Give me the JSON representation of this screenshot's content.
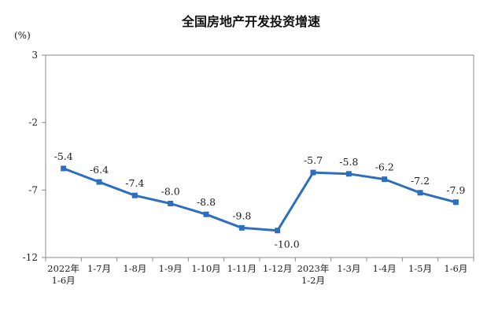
{
  "chart_data": {
    "type": "line",
    "title": "全国房地产开发投资增速",
    "unit_label": "(%)",
    "xlabel": "",
    "ylabel": "",
    "ylim": [
      -12,
      3
    ],
    "yticks": [
      3,
      -2,
      -7,
      -12
    ],
    "grid": false,
    "categories": [
      [
        "2022年",
        "1-6月"
      ],
      [
        "1-7月"
      ],
      [
        "1-8月"
      ],
      [
        "1-9月"
      ],
      [
        "1-10月"
      ],
      [
        "1-11月"
      ],
      [
        "1-12月"
      ],
      [
        "2023年",
        "1-2月"
      ],
      [
        "1-3月"
      ],
      [
        "1-4月"
      ],
      [
        "1-5月"
      ],
      [
        "1-6月"
      ]
    ],
    "series": [
      {
        "values": [
          -5.4,
          -6.4,
          -7.4,
          -8.0,
          -8.8,
          -9.8,
          -10.0,
          -5.7,
          -5.8,
          -6.2,
          -7.2,
          -7.9
        ],
        "data_labels": [
          "-5.4",
          "-6.4",
          "-7.4",
          "-8.0",
          "-8.8",
          "-9.8",
          "-10.0",
          "-5.7",
          "-5.8",
          "-6.2",
          "-7.2",
          "-7.9"
        ],
        "color": "#2e6ebf"
      }
    ]
  }
}
